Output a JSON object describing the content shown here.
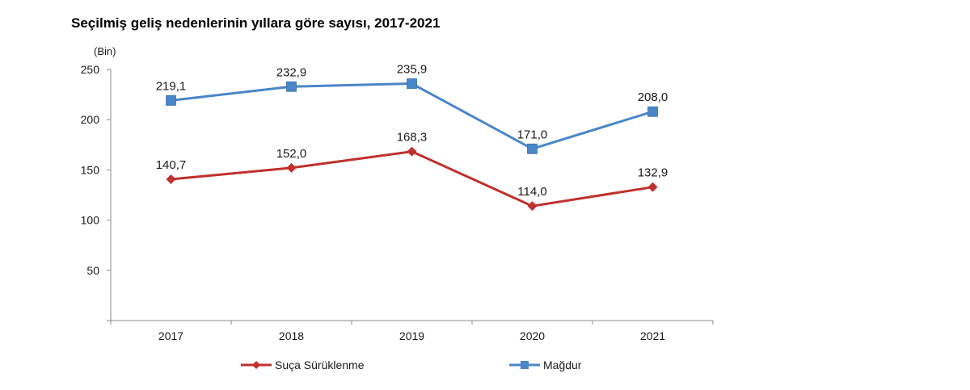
{
  "chart_data": {
    "type": "line",
    "title": "Seçilmiş geliş nedenlerinin yıllara göre sayısı, 2017-2021",
    "ylabel": "(Bin)",
    "xlabel": "",
    "categories": [
      "2017",
      "2018",
      "2019",
      "2020",
      "2021"
    ],
    "ylim": [
      0,
      250
    ],
    "yticks": [
      50,
      100,
      150,
      200,
      250
    ],
    "series": [
      {
        "name": "Suça Sürüklenme",
        "values": [
          140.7,
          152.0,
          168.3,
          114.0,
          132.9
        ],
        "labels": [
          "140,7",
          "152,0",
          "168,3",
          "114,0",
          "132,9"
        ],
        "color": "#c0302c",
        "marker": "diamond"
      },
      {
        "name": "Mağdur",
        "values": [
          219.1,
          232.9,
          235.9,
          171.0,
          208.0
        ],
        "labels": [
          "219,1",
          "232,9",
          "235,9",
          "171,0",
          "208,0"
        ],
        "color": "#4a86c8",
        "marker": "square"
      }
    ],
    "grid": false,
    "legend": "bottom"
  }
}
